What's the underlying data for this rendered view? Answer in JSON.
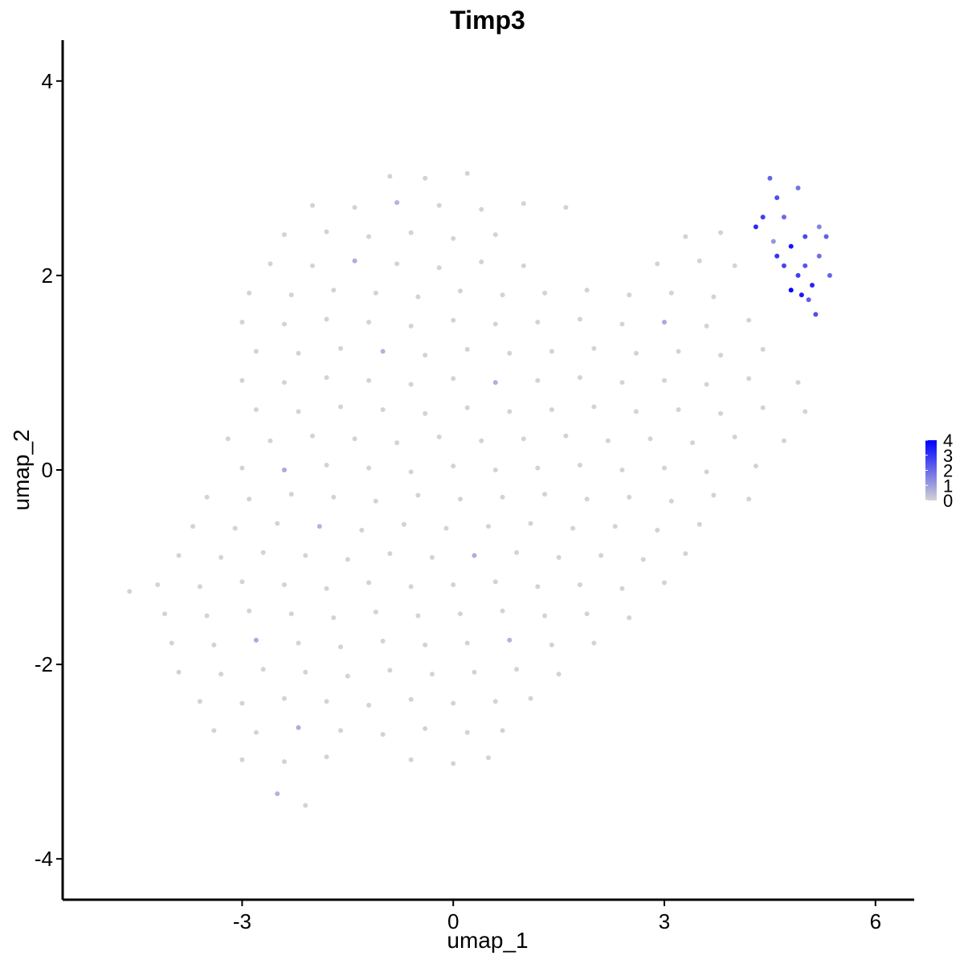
{
  "chart_data": {
    "type": "scatter",
    "title": "Timp3",
    "x_label": "umap_1",
    "y_label": "umap_2",
    "xlim": [
      -5.55,
      6.55
    ],
    "ylim": [
      -4.42,
      4.42
    ],
    "xticks": [
      -3,
      0,
      3,
      6
    ],
    "yticks": [
      -4,
      -2,
      0,
      2,
      4
    ],
    "low_color": "#d3d3d3",
    "high_color": "#0000ff",
    "color_lim": [
      0,
      4
    ],
    "color_ticks": [
      0,
      1,
      2,
      3,
      4
    ],
    "legend_position": "right",
    "x": [
      -0.9,
      -0.4,
      0.2,
      -2.0,
      -1.4,
      -0.8,
      -0.2,
      0.4,
      1.0,
      1.6,
      -2.4,
      -1.8,
      -1.2,
      -0.6,
      0.0,
      0.6,
      3.3,
      3.8,
      -2.6,
      -2.0,
      -1.4,
      -0.8,
      -0.2,
      0.4,
      1.0,
      2.9,
      3.5,
      4.0,
      -2.9,
      -2.3,
      -1.7,
      -1.1,
      -0.5,
      0.1,
      0.7,
      1.3,
      1.9,
      2.5,
      3.1,
      3.7,
      -3.0,
      -2.4,
      -1.8,
      -1.2,
      -0.6,
      0.0,
      0.6,
      1.2,
      1.8,
      2.4,
      3.0,
      3.6,
      4.2,
      -2.8,
      -2.2,
      -1.6,
      -1.0,
      -0.4,
      0.2,
      0.8,
      1.4,
      2.0,
      2.6,
      3.2,
      3.8,
      4.4,
      -3.0,
      -2.4,
      -1.8,
      -1.2,
      -0.6,
      0.0,
      0.6,
      1.2,
      1.8,
      2.4,
      3.0,
      3.6,
      4.2,
      4.9,
      -2.8,
      -2.2,
      -1.6,
      -1.0,
      -0.4,
      0.2,
      0.8,
      1.4,
      2.0,
      2.6,
      3.2,
      3.8,
      4.4,
      5.0,
      -3.2,
      -2.6,
      -2.0,
      -1.4,
      -0.8,
      -0.2,
      0.4,
      1.0,
      1.6,
      2.2,
      2.8,
      3.4,
      4.0,
      4.7,
      -3.0,
      -2.4,
      -1.8,
      -1.2,
      -0.6,
      0.0,
      0.6,
      1.2,
      1.8,
      2.4,
      3.0,
      3.6,
      4.3,
      -3.5,
      -2.9,
      -2.3,
      -1.7,
      -1.1,
      -0.5,
      0.1,
      0.7,
      1.3,
      1.9,
      2.5,
      3.1,
      3.7,
      4.2,
      -3.7,
      -3.1,
      -2.5,
      -1.9,
      -1.3,
      -0.7,
      -0.1,
      0.5,
      1.1,
      1.7,
      2.3,
      2.9,
      3.5,
      -3.9,
      -3.3,
      -2.7,
      -2.1,
      -1.5,
      -0.9,
      -0.3,
      0.3,
      0.9,
      1.5,
      2.1,
      2.7,
      3.3,
      -4.2,
      -3.6,
      -3.0,
      -2.4,
      -1.8,
      -1.2,
      -0.6,
      0.0,
      0.6,
      1.2,
      1.8,
      2.4,
      3.0,
      -4.6,
      -4.1,
      -3.5,
      -2.9,
      -2.3,
      -1.7,
      -1.1,
      -0.5,
      0.1,
      0.7,
      1.3,
      1.9,
      2.5,
      -4.0,
      -3.4,
      -2.8,
      -2.2,
      -1.6,
      -1.0,
      -0.4,
      0.2,
      0.8,
      1.4,
      2.0,
      -3.9,
      -3.3,
      -2.7,
      -2.1,
      -1.5,
      -0.9,
      -0.3,
      0.3,
      0.9,
      1.5,
      -3.6,
      -3.0,
      -2.4,
      -1.8,
      -1.2,
      -0.6,
      0.0,
      0.6,
      1.1,
      -3.4,
      -2.8,
      -2.2,
      -1.6,
      -1.0,
      -0.4,
      0.2,
      0.7,
      -3.0,
      -2.4,
      -1.8,
      -0.6,
      0.0,
      0.5,
      -2.5,
      -2.1,
      4.5,
      4.6,
      4.4,
      4.7,
      4.3,
      4.9,
      5.0,
      4.8,
      4.6,
      5.2,
      5.3,
      4.7,
      5.0,
      5.2,
      4.9,
      5.1,
      4.8,
      4.95,
      5.35,
      5.15,
      4.55,
      5.05
    ],
    "values": [
      3.02,
      3.0,
      3.05,
      2.72,
      2.7,
      2.75,
      2.72,
      2.68,
      2.74,
      2.7,
      2.42,
      2.45,
      2.4,
      2.44,
      2.38,
      2.42,
      2.4,
      2.44,
      2.12,
      2.1,
      2.15,
      2.12,
      2.08,
      2.14,
      2.1,
      2.12,
      2.15,
      2.1,
      1.82,
      1.8,
      1.85,
      1.82,
      1.78,
      1.84,
      1.8,
      1.82,
      1.85,
      1.8,
      1.82,
      1.78,
      1.52,
      1.5,
      1.55,
      1.52,
      1.48,
      1.54,
      1.5,
      1.52,
      1.55,
      1.5,
      1.52,
      1.48,
      1.54,
      1.22,
      1.2,
      1.25,
      1.22,
      1.18,
      1.24,
      1.2,
      1.22,
      1.25,
      1.2,
      1.22,
      1.18,
      1.24,
      0.92,
      0.9,
      0.95,
      0.92,
      0.88,
      0.94,
      0.9,
      0.92,
      0.95,
      0.9,
      0.92,
      0.88,
      0.94,
      0.9,
      0.62,
      0.6,
      0.65,
      0.62,
      0.58,
      0.64,
      0.6,
      0.62,
      0.65,
      0.6,
      0.62,
      0.58,
      0.64,
      0.6,
      0.32,
      0.3,
      0.35,
      0.32,
      0.28,
      0.34,
      0.3,
      0.32,
      0.35,
      0.3,
      0.32,
      0.28,
      0.34,
      0.3,
      0.02,
      0.0,
      0.05,
      0.02,
      -0.02,
      0.04,
      0.0,
      0.02,
      0.05,
      0.0,
      0.02,
      -0.02,
      0.04,
      -0.28,
      -0.3,
      -0.25,
      -0.28,
      -0.32,
      -0.26,
      -0.3,
      -0.28,
      -0.25,
      -0.3,
      -0.28,
      -0.32,
      -0.26,
      -0.3,
      -0.58,
      -0.6,
      -0.55,
      -0.58,
      -0.62,
      -0.56,
      -0.6,
      -0.58,
      -0.55,
      -0.6,
      -0.58,
      -0.62,
      -0.56,
      -0.88,
      -0.9,
      -0.85,
      -0.88,
      -0.92,
      -0.86,
      -0.9,
      -0.88,
      -0.85,
      -0.9,
      -0.88,
      -0.92,
      -0.86,
      -1.18,
      -1.2,
      -1.15,
      -1.18,
      -1.22,
      -1.16,
      -1.2,
      -1.18,
      -1.15,
      -1.2,
      -1.18,
      -1.22,
      -1.16,
      -1.25,
      -1.48,
      -1.5,
      -1.45,
      -1.48,
      -1.52,
      -1.46,
      -1.5,
      -1.48,
      -1.45,
      -1.5,
      -1.48,
      -1.52,
      -1.78,
      -1.8,
      -1.75,
      -1.78,
      -1.82,
      -1.76,
      -1.8,
      -1.78,
      -1.75,
      -1.8,
      -1.78,
      -2.08,
      -2.1,
      -2.05,
      -2.08,
      -2.12,
      -2.06,
      -2.1,
      -2.08,
      -2.05,
      -2.1,
      -2.38,
      -2.4,
      -2.35,
      -2.38,
      -2.42,
      -2.36,
      -2.4,
      -2.38,
      -2.35,
      -2.68,
      -2.7,
      -2.65,
      -2.68,
      -2.72,
      -2.66,
      -2.7,
      -2.68,
      -2.98,
      -3.0,
      -2.95,
      -2.98,
      -3.02,
      -2.96,
      -3.33,
      -3.45,
      3.0,
      2.8,
      2.6,
      2.6,
      2.5,
      2.9,
      2.4,
      2.3,
      2.2,
      2.5,
      2.4,
      2.1,
      2.1,
      2.2,
      2.0,
      1.9,
      1.85,
      1.8,
      2.0,
      1.6,
      2.35,
      1.75
    ],
    "expression": [
      0,
      0,
      0,
      0,
      0,
      0.6,
      0,
      0,
      0,
      0,
      0,
      0,
      0,
      0,
      0,
      0,
      0,
      0,
      0,
      0,
      0.7,
      0,
      0,
      0,
      0,
      0,
      0,
      0,
      0,
      0,
      0,
      0,
      0,
      0,
      0,
      0,
      0,
      0,
      0,
      0,
      0,
      0,
      0,
      0,
      0,
      0,
      0,
      0,
      0,
      0,
      0.8,
      0,
      0,
      0,
      0,
      0,
      0.6,
      0,
      0,
      0,
      0,
      0,
      0,
      0,
      0,
      0,
      0,
      0,
      0,
      0,
      0,
      0,
      0.7,
      0,
      0,
      0,
      0,
      0,
      0,
      0,
      0,
      0,
      0,
      0,
      0,
      0,
      0,
      0,
      0,
      0,
      0,
      0,
      0,
      0,
      0,
      0,
      0,
      0,
      0,
      0,
      0,
      0,
      0,
      0,
      0,
      0,
      0,
      0,
      0,
      0.8,
      0,
      0,
      0,
      0,
      0,
      0,
      0,
      0,
      0,
      0,
      0,
      0,
      0,
      0,
      0,
      0,
      0,
      0,
      0,
      0,
      0,
      0,
      0,
      0,
      0,
      0,
      0,
      0,
      0.6,
      0,
      0,
      0,
      0,
      0,
      0,
      0,
      0,
      0,
      0,
      0,
      0,
      0,
      0,
      0,
      0,
      0.7,
      0,
      0,
      0,
      0,
      0,
      0,
      0,
      0,
      0,
      0,
      0,
      0,
      0,
      0,
      0,
      0,
      0,
      0,
      0,
      0,
      0,
      0,
      0,
      0,
      0,
      0,
      0,
      0,
      0,
      0,
      0,
      0,
      0,
      0.8,
      0,
      0,
      0,
      0,
      0,
      0.6,
      0,
      0,
      0,
      0,
      0,
      0,
      0,
      0,
      0,
      0,
      0,
      0,
      0,
      0,
      0,
      0,
      0,
      0,
      0,
      0,
      0,
      0,
      0,
      0.7,
      0,
      0,
      0,
      0,
      0,
      0,
      0,
      0,
      0,
      0,
      0,
      0.6,
      0,
      2.1,
      2.5,
      2.8,
      2.0,
      3.2,
      1.8,
      2.6,
      3.6,
      3.0,
      1.5,
      2.2,
      2.7,
      2.4,
      1.9,
      2.8,
      3.3,
      4.0,
      3.5,
      2.1,
      2.5,
      1.2,
      2.2
    ]
  }
}
